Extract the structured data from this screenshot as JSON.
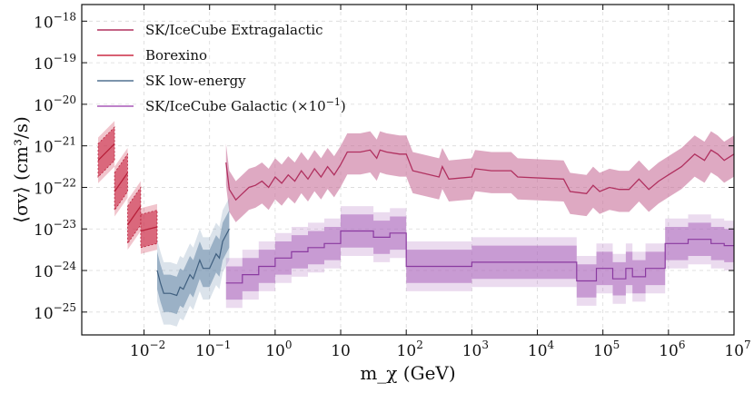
{
  "chart_data": {
    "type": "area",
    "xscale": "log",
    "yscale": "log",
    "xlim_log10": [
      -2.95,
      7
    ],
    "ylim_log10": [
      -25.55,
      -17.6
    ],
    "xlabel": "m_χ (GeV)",
    "ylabel": "⟨σv⟩ (cm³/s)",
    "grid": true,
    "legend_position": "top-left",
    "x_ticks": [
      {
        "base": "10",
        "exp": "−2",
        "log": -2
      },
      {
        "base": "10",
        "exp": "−1",
        "log": -1
      },
      {
        "base": "10",
        "exp": "0",
        "log": 0
      },
      {
        "base": "10",
        "exp": "",
        "log": 1
      },
      {
        "base": "10",
        "exp": "2",
        "log": 2
      },
      {
        "base": "10",
        "exp": "3",
        "log": 3
      },
      {
        "base": "10",
        "exp": "4",
        "log": 4
      },
      {
        "base": "10",
        "exp": "5",
        "log": 5
      },
      {
        "base": "10",
        "exp": "6",
        "log": 6
      },
      {
        "base": "10",
        "exp": "7",
        "log": 7
      }
    ],
    "y_ticks": [
      {
        "base": "10",
        "exp": "−18",
        "log": -18
      },
      {
        "base": "10",
        "exp": "−19",
        "log": -19
      },
      {
        "base": "10",
        "exp": "−20",
        "log": -20
      },
      {
        "base": "10",
        "exp": "−21",
        "log": -21
      },
      {
        "base": "10",
        "exp": "−22",
        "log": -22
      },
      {
        "base": "10",
        "exp": "−23",
        "log": -23
      },
      {
        "base": "10",
        "exp": "−24",
        "log": -24
      },
      {
        "base": "10",
        "exp": "−25",
        "log": -25
      }
    ],
    "legend": [
      {
        "label": "SK/IceCube Extragalactic",
        "color": "#b0305f"
      },
      {
        "label": "Borexino",
        "color": "#cc2c45"
      },
      {
        "label": "SK low-energy",
        "color": "#507090"
      },
      {
        "label": "SK/IceCube Galactic (×10",
        "sup": "−1",
        "tail": ")",
        "color": "#a858b8"
      }
    ],
    "series": [
      {
        "name": "SK/IceCube Extragalactic",
        "band_color": "#c8709a",
        "band_opacity": 0.6,
        "line_color": "#b0305f",
        "band_width_log": 0.45,
        "points_log": [
          [
            -0.75,
            -21.4
          ],
          [
            -0.7,
            -22.05
          ],
          [
            -0.6,
            -22.3
          ],
          [
            -0.5,
            -22.15
          ],
          [
            -0.4,
            -22.0
          ],
          [
            -0.3,
            -21.95
          ],
          [
            -0.2,
            -21.85
          ],
          [
            -0.1,
            -22.0
          ],
          [
            0.0,
            -21.75
          ],
          [
            0.1,
            -21.9
          ],
          [
            0.2,
            -21.7
          ],
          [
            0.3,
            -21.85
          ],
          [
            0.4,
            -21.6
          ],
          [
            0.5,
            -21.8
          ],
          [
            0.6,
            -21.55
          ],
          [
            0.7,
            -21.75
          ],
          [
            0.8,
            -21.5
          ],
          [
            0.9,
            -21.7
          ],
          [
            1.0,
            -21.45
          ],
          [
            1.1,
            -21.15
          ],
          [
            1.3,
            -21.15
          ],
          [
            1.45,
            -21.1
          ],
          [
            1.55,
            -21.3
          ],
          [
            1.6,
            -21.1
          ],
          [
            1.7,
            -21.15
          ],
          [
            1.9,
            -21.2
          ],
          [
            2.0,
            -21.2
          ],
          [
            2.1,
            -21.6
          ],
          [
            2.5,
            -21.75
          ],
          [
            2.55,
            -21.5
          ],
          [
            2.65,
            -21.8
          ],
          [
            3.0,
            -21.75
          ],
          [
            3.05,
            -21.55
          ],
          [
            3.3,
            -21.6
          ],
          [
            3.6,
            -21.6
          ],
          [
            3.7,
            -21.75
          ],
          [
            4.4,
            -21.8
          ],
          [
            4.5,
            -22.1
          ],
          [
            4.75,
            -22.15
          ],
          [
            4.85,
            -21.95
          ],
          [
            4.95,
            -22.1
          ],
          [
            5.1,
            -22.0
          ],
          [
            5.25,
            -22.05
          ],
          [
            5.4,
            -22.05
          ],
          [
            5.55,
            -21.8
          ],
          [
            5.7,
            -22.05
          ],
          [
            5.85,
            -21.85
          ],
          [
            6.0,
            -21.7
          ],
          [
            6.2,
            -21.5
          ],
          [
            6.4,
            -21.2
          ],
          [
            6.55,
            -21.35
          ],
          [
            6.65,
            -21.1
          ],
          [
            6.75,
            -21.2
          ],
          [
            6.85,
            -21.35
          ],
          [
            7.0,
            -21.2
          ]
        ]
      },
      {
        "name": "Borexino",
        "band_color": "#d0405a",
        "line_color": "#b8203a",
        "segments": [
          {
            "x_log": [
              -2.7,
              -2.45
            ],
            "y_log": [
              -21.35,
              -20.95
            ],
            "inner_half": 0.4,
            "outer_half": 0.55
          },
          {
            "x_log": [
              -2.45,
              -2.25
            ],
            "y_log": [
              -22.1,
              -21.65
            ],
            "inner_half": 0.45,
            "outer_half": 0.6
          },
          {
            "x_log": [
              -2.25,
              -2.05
            ],
            "y_log": [
              -22.9,
              -22.45
            ],
            "inner_half": 0.45,
            "outer_half": 0.6
          },
          {
            "x_log": [
              -2.05,
              -1.8
            ],
            "y_log": [
              -23.05,
              -22.95
            ],
            "inner_half": 0.4,
            "outer_half": 0.55
          }
        ]
      },
      {
        "name": "SK low-energy",
        "band_color": "#6f8fae",
        "line_color": "#3f5f7f",
        "inner_half": 0.45,
        "outer_half": 0.75,
        "points_log": [
          [
            -1.8,
            -24.0
          ],
          [
            -1.75,
            -24.3
          ],
          [
            -1.7,
            -24.55
          ],
          [
            -1.6,
            -24.55
          ],
          [
            -1.5,
            -24.6
          ],
          [
            -1.45,
            -24.4
          ],
          [
            -1.4,
            -24.45
          ],
          [
            -1.3,
            -24.1
          ],
          [
            -1.25,
            -24.2
          ],
          [
            -1.15,
            -23.75
          ],
          [
            -1.1,
            -23.95
          ],
          [
            -1.0,
            -23.95
          ],
          [
            -0.9,
            -23.6
          ],
          [
            -0.85,
            -23.7
          ],
          [
            -0.8,
            -23.3
          ],
          [
            -0.7,
            -23.0
          ]
        ]
      },
      {
        "name": "SK/IceCube Galactic (×10⁻¹)",
        "band_color": "#b070c0",
        "line_color": "#8a3aa0",
        "inner_half": 0.4,
        "outer_half": 0.6,
        "points_log": [
          [
            -0.75,
            -24.3
          ],
          [
            -0.5,
            -24.3
          ],
          [
            -0.5,
            -24.1
          ],
          [
            -0.25,
            -24.1
          ],
          [
            -0.25,
            -23.9
          ],
          [
            0.0,
            -23.9
          ],
          [
            0.0,
            -23.7
          ],
          [
            0.25,
            -23.7
          ],
          [
            0.25,
            -23.55
          ],
          [
            0.5,
            -23.55
          ],
          [
            0.5,
            -23.45
          ],
          [
            0.75,
            -23.45
          ],
          [
            0.75,
            -23.35
          ],
          [
            1.0,
            -23.35
          ],
          [
            1.0,
            -23.05
          ],
          [
            1.5,
            -23.05
          ],
          [
            1.5,
            -23.2
          ],
          [
            1.75,
            -23.2
          ],
          [
            1.75,
            -23.1
          ],
          [
            2.0,
            -23.1
          ],
          [
            2.0,
            -23.9
          ],
          [
            3.0,
            -23.9
          ],
          [
            3.0,
            -23.8
          ],
          [
            4.6,
            -23.8
          ],
          [
            4.6,
            -24.25
          ],
          [
            4.9,
            -24.25
          ],
          [
            4.9,
            -23.95
          ],
          [
            5.15,
            -23.95
          ],
          [
            5.15,
            -24.2
          ],
          [
            5.35,
            -24.2
          ],
          [
            5.35,
            -23.95
          ],
          [
            5.45,
            -23.95
          ],
          [
            5.45,
            -24.15
          ],
          [
            5.65,
            -24.15
          ],
          [
            5.65,
            -23.95
          ],
          [
            5.95,
            -23.95
          ],
          [
            5.95,
            -23.35
          ],
          [
            6.3,
            -23.35
          ],
          [
            6.3,
            -23.25
          ],
          [
            6.65,
            -23.25
          ],
          [
            6.65,
            -23.35
          ],
          [
            6.85,
            -23.35
          ],
          [
            6.85,
            -23.4
          ],
          [
            7.0,
            -23.4
          ]
        ]
      }
    ]
  }
}
